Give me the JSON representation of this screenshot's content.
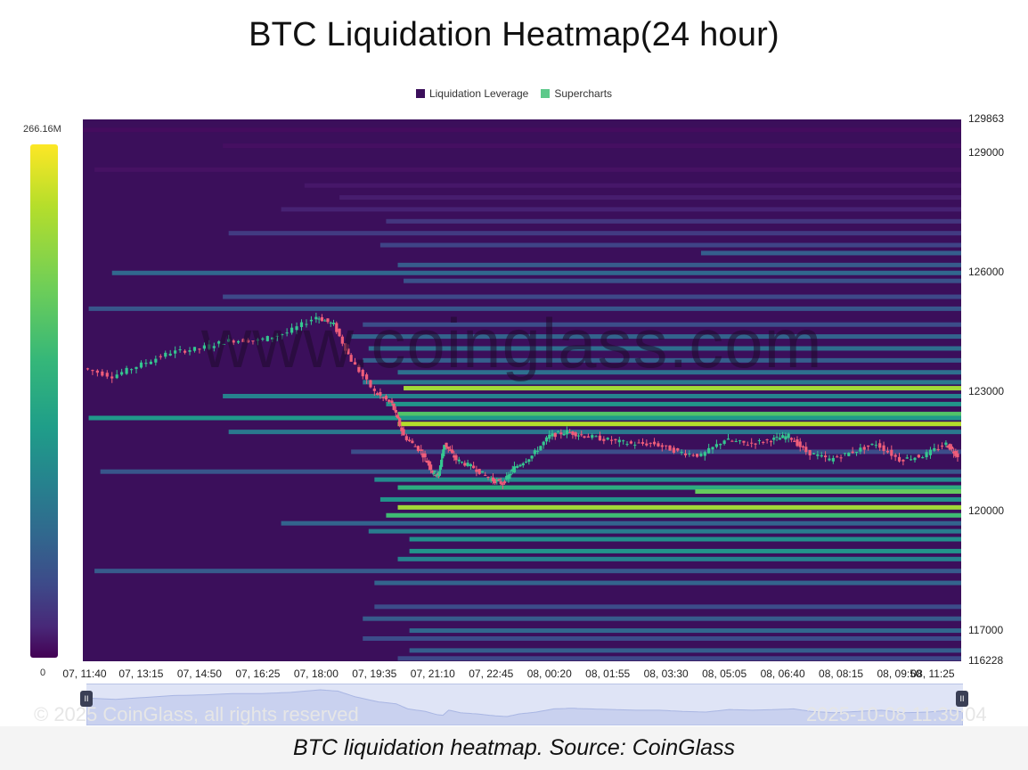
{
  "chart_data": {
    "type": "heatmap",
    "title": "BTC Liquidation Heatmap(24 hour)",
    "legend": [
      "Liquidation Leverage",
      "Supercharts"
    ],
    "legend_colors": [
      "#3b0f5b",
      "#5dc98a"
    ],
    "legend_placement": "top-center",
    "colorbar": {
      "max_label": "266.16M",
      "min_label": "0",
      "max": 266.16,
      "min": 0,
      "unit": "M"
    },
    "y_tick_labels": [
      "129863",
      "129000",
      "126000",
      "123000",
      "120000",
      "117000",
      "116228"
    ],
    "y_range": [
      116228,
      129863
    ],
    "x_tick_labels": [
      "07, 11:40",
      "07, 13:15",
      "07, 14:50",
      "07, 16:25",
      "07, 18:00",
      "07, 19:35",
      "07, 21:10",
      "07, 22:45",
      "08, 00:20",
      "08, 01:55",
      "08, 03:30",
      "08, 05:05",
      "08, 06:40",
      "08, 08:15",
      "08, 09:50",
      "08, 11:25"
    ],
    "price_series": [
      [
        0,
        123600
      ],
      [
        0.5,
        123400
      ],
      [
        1,
        123700
      ],
      [
        1.5,
        124000
      ],
      [
        2,
        124100
      ],
      [
        2.5,
        124300
      ],
      [
        3,
        124300
      ],
      [
        3.5,
        124500
      ],
      [
        4,
        124900
      ],
      [
        4.3,
        124700
      ],
      [
        4.6,
        123800
      ],
      [
        5,
        123000
      ],
      [
        5.3,
        122700
      ],
      [
        5.5,
        121900
      ],
      [
        5.8,
        121500
      ],
      [
        6,
        121000
      ],
      [
        6.1,
        120900
      ],
      [
        6.2,
        121700
      ],
      [
        6.4,
        121300
      ],
      [
        6.7,
        121100
      ],
      [
        7,
        120800
      ],
      [
        7.2,
        120700
      ],
      [
        7.4,
        121100
      ],
      [
        7.7,
        121400
      ],
      [
        8,
        121900
      ],
      [
        8.3,
        122000
      ],
      [
        8.6,
        121900
      ],
      [
        9,
        121800
      ],
      [
        9.4,
        121700
      ],
      [
        9.8,
        121700
      ],
      [
        10.2,
        121500
      ],
      [
        10.6,
        121400
      ],
      [
        11,
        121800
      ],
      [
        11.4,
        121700
      ],
      [
        11.8,
        121800
      ],
      [
        12.1,
        121900
      ],
      [
        12.4,
        121500
      ],
      [
        12.8,
        121300
      ],
      [
        13.2,
        121500
      ],
      [
        13.6,
        121700
      ],
      [
        14,
        121300
      ],
      [
        14.4,
        121400
      ],
      [
        14.8,
        121700
      ],
      [
        15,
        121400
      ]
    ],
    "liquidation_levels": [
      {
        "price": 129600,
        "start": 0,
        "intensity": 0.04
      },
      {
        "price": 129200,
        "start": 2.4,
        "intensity": 0.05
      },
      {
        "price": 128600,
        "start": 0.2,
        "intensity": 0.06
      },
      {
        "price": 128200,
        "start": 3.8,
        "intensity": 0.08
      },
      {
        "price": 127900,
        "start": 4.4,
        "intensity": 0.1
      },
      {
        "price": 127600,
        "start": 3.4,
        "intensity": 0.12
      },
      {
        "price": 127300,
        "start": 5.2,
        "intensity": 0.2
      },
      {
        "price": 127000,
        "start": 2.5,
        "intensity": 0.22
      },
      {
        "price": 126700,
        "start": 5.1,
        "intensity": 0.26
      },
      {
        "price": 126500,
        "start": 10.6,
        "intensity": 0.38
      },
      {
        "price": 126200,
        "start": 5.4,
        "intensity": 0.36
      },
      {
        "price": 126000,
        "start": 0.5,
        "intensity": 0.42
      },
      {
        "price": 125800,
        "start": 5.5,
        "intensity": 0.32
      },
      {
        "price": 125400,
        "start": 2.4,
        "intensity": 0.28
      },
      {
        "price": 125100,
        "start": 0.1,
        "intensity": 0.34
      },
      {
        "price": 124700,
        "start": 4.8,
        "intensity": 0.3
      },
      {
        "price": 124400,
        "start": 4.6,
        "intensity": 0.4
      },
      {
        "price": 124100,
        "start": 4.9,
        "intensity": 0.45
      },
      {
        "price": 123800,
        "start": 4.8,
        "intensity": 0.38
      },
      {
        "price": 123500,
        "start": 5.4,
        "intensity": 0.46
      },
      {
        "price": 123250,
        "start": 4.8,
        "intensity": 0.5
      },
      {
        "price": 123100,
        "start": 5.5,
        "intensity": 0.93
      },
      {
        "price": 122900,
        "start": 2.4,
        "intensity": 0.55
      },
      {
        "price": 122700,
        "start": 5.2,
        "intensity": 0.62
      },
      {
        "price": 122450,
        "start": 5.4,
        "intensity": 0.82
      },
      {
        "price": 122350,
        "start": 0.1,
        "intensity": 0.64
      },
      {
        "price": 122200,
        "start": 5.4,
        "intensity": 0.95
      },
      {
        "price": 122000,
        "start": 2.5,
        "intensity": 0.5
      },
      {
        "price": 121500,
        "start": 4.6,
        "intensity": 0.3
      },
      {
        "price": 121000,
        "start": 0.3,
        "intensity": 0.34
      },
      {
        "price": 120800,
        "start": 5.0,
        "intensity": 0.58
      },
      {
        "price": 120600,
        "start": 5.4,
        "intensity": 0.72
      },
      {
        "price": 120500,
        "start": 10.5,
        "intensity": 0.86
      },
      {
        "price": 120300,
        "start": 5.1,
        "intensity": 0.62
      },
      {
        "price": 120100,
        "start": 5.4,
        "intensity": 0.93
      },
      {
        "price": 119900,
        "start": 5.2,
        "intensity": 0.78
      },
      {
        "price": 119700,
        "start": 3.4,
        "intensity": 0.4
      },
      {
        "price": 119500,
        "start": 4.9,
        "intensity": 0.52
      },
      {
        "price": 119300,
        "start": 5.6,
        "intensity": 0.6
      },
      {
        "price": 119000,
        "start": 5.6,
        "intensity": 0.62
      },
      {
        "price": 118800,
        "start": 5.4,
        "intensity": 0.55
      },
      {
        "price": 118500,
        "start": 0.2,
        "intensity": 0.36
      },
      {
        "price": 118200,
        "start": 5.0,
        "intensity": 0.4
      },
      {
        "price": 117600,
        "start": 5.0,
        "intensity": 0.3
      },
      {
        "price": 117300,
        "start": 4.8,
        "intensity": 0.36
      },
      {
        "price": 117000,
        "start": 5.6,
        "intensity": 0.42
      },
      {
        "price": 116800,
        "start": 4.8,
        "intensity": 0.3
      },
      {
        "price": 116500,
        "start": 5.6,
        "intensity": 0.38
      },
      {
        "price": 116300,
        "start": 5.4,
        "intensity": 0.28
      }
    ]
  },
  "watermark": "www.coinglass.com",
  "footer": {
    "copyright": "© 2025 CoinGlass, all rights reserved",
    "timestamp": "2025-10-08 11:39:04"
  },
  "caption": "BTC liquidation heatmap. Source: CoinGlass"
}
